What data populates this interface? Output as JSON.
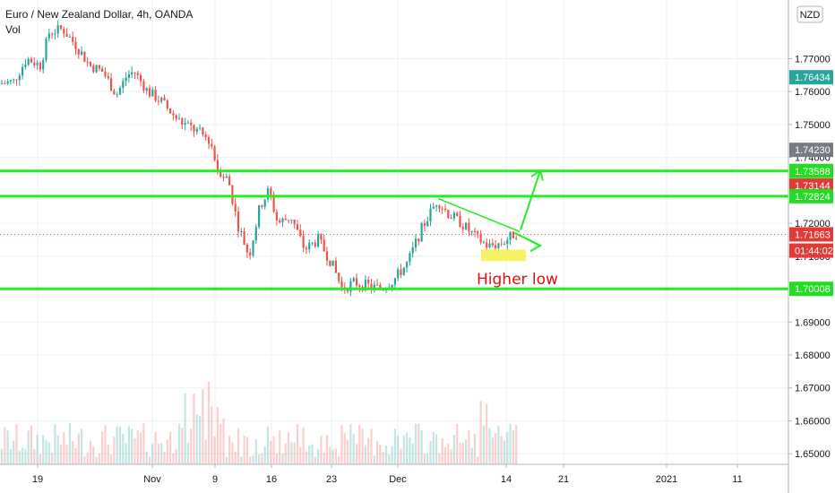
{
  "header": {
    "title": "Euro / New Zealand Dollar, 4h, OANDA",
    "vol_label": "Vol"
  },
  "currency_badge": "NZD",
  "chart_data": {
    "type": "candlestick",
    "title": "Euro / New Zealand Dollar, 4h, OANDA",
    "y_ticks": [
      "1.77000",
      "1.76000",
      "1.75000",
      "1.74000",
      "1.72000",
      "1.71000",
      "1.69000",
      "1.68000",
      "1.67000",
      "1.66000",
      "1.65000"
    ],
    "x_ticks": [
      "19",
      "Nov",
      "9",
      "16",
      "23",
      "Dec",
      "14",
      "21",
      "2021",
      "11"
    ],
    "ylim": [
      1.646,
      1.782
    ],
    "price_tags": [
      {
        "value": "1.76434",
        "price": 1.76434,
        "color": "#26a69a"
      },
      {
        "value": "1.74230",
        "price": 1.7423,
        "color": "#787b86"
      },
      {
        "value": "1.73588",
        "price": 1.73588,
        "color": "#22dd22"
      },
      {
        "value": "1.73144",
        "price": 1.73144,
        "color": "#e53935"
      },
      {
        "value": "1.72824",
        "price": 1.72824,
        "color": "#22dd22"
      },
      {
        "value": "1.71663",
        "price": 1.71663,
        "color": "#e53935"
      },
      {
        "value": "01:44:02",
        "price": 1.7117,
        "color": "#e53935"
      },
      {
        "value": "1.70008",
        "price": 1.70008,
        "color": "#22dd22"
      }
    ],
    "horizontal_levels": [
      1.73588,
      1.72824,
      1.70008
    ],
    "current_price": 1.71663,
    "annotation": "Higher low",
    "price_path": [
      [
        0,
        1.7625
      ],
      [
        15,
        1.763
      ],
      [
        30,
        1.77
      ],
      [
        45,
        1.768
      ],
      [
        55,
        1.778
      ],
      [
        70,
        1.779
      ],
      [
        85,
        1.774
      ],
      [
        100,
        1.768
      ],
      [
        115,
        1.766
      ],
      [
        130,
        1.759
      ],
      [
        142,
        1.765
      ],
      [
        150,
        1.766
      ],
      [
        165,
        1.76
      ],
      [
        180,
        1.757
      ],
      [
        200,
        1.751
      ],
      [
        220,
        1.748
      ],
      [
        235,
        1.745
      ],
      [
        242,
        1.737
      ],
      [
        255,
        1.733
      ],
      [
        265,
        1.72
      ],
      [
        278,
        1.71
      ],
      [
        290,
        1.725
      ],
      [
        300,
        1.73
      ],
      [
        310,
        1.72
      ],
      [
        325,
        1.722
      ],
      [
        340,
        1.712
      ],
      [
        355,
        1.715
      ],
      [
        370,
        1.708
      ],
      [
        382,
        1.7
      ],
      [
        395,
        1.702
      ],
      [
        410,
        1.701
      ],
      [
        425,
        1.7
      ],
      [
        440,
        1.703
      ],
      [
        455,
        1.708
      ],
      [
        470,
        1.718
      ],
      [
        488,
        1.727
      ],
      [
        500,
        1.723
      ],
      [
        515,
        1.72
      ],
      [
        530,
        1.716
      ],
      [
        545,
        1.713
      ],
      [
        560,
        1.714
      ],
      [
        575,
        1.717
      ]
    ]
  }
}
